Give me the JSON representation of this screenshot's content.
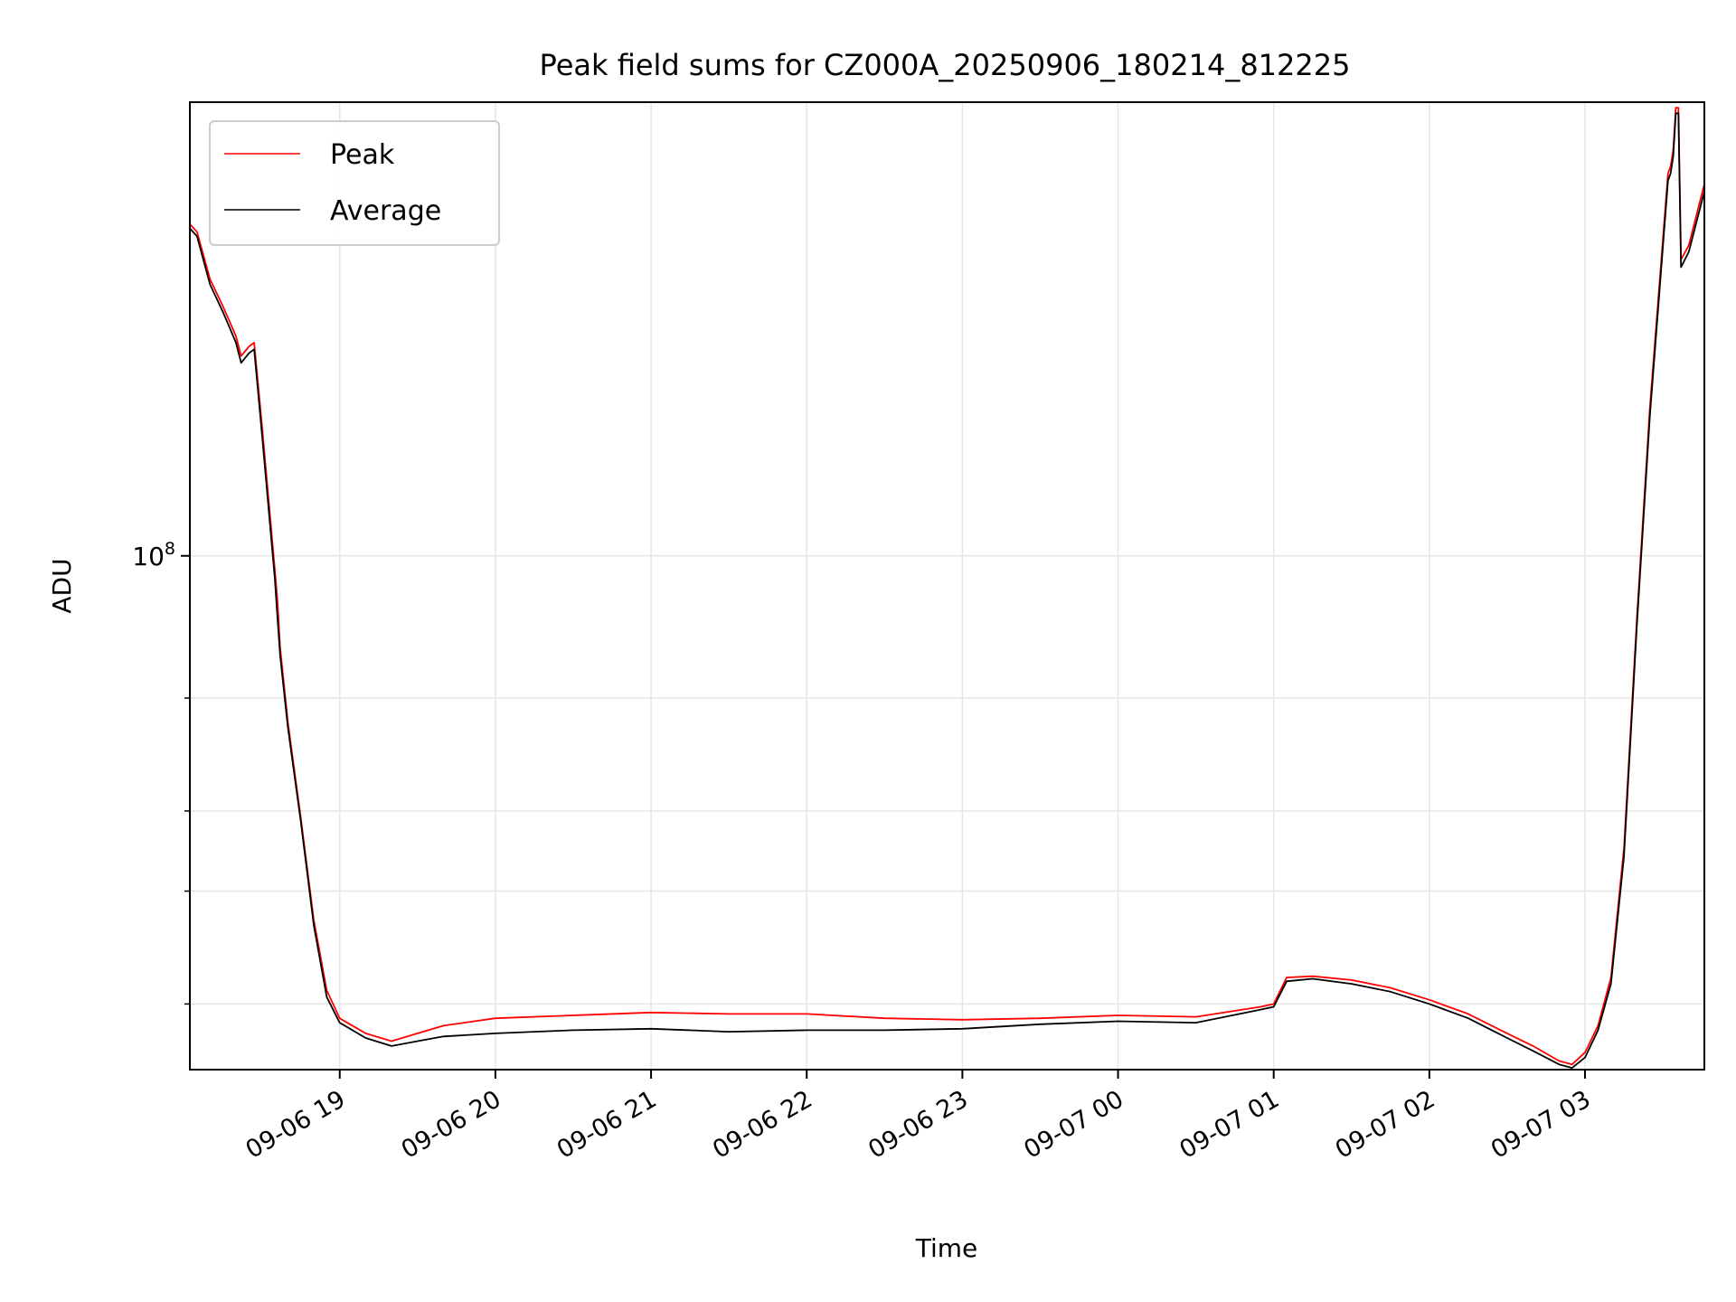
{
  "chart_data": {
    "type": "line",
    "title": "Peak field sums for CZ000A_20250906_180214_812225",
    "xlabel": "Time",
    "ylabel": "ADU",
    "y_scale": "log",
    "ylim": [
      15800000,
      510000000
    ],
    "xlim": [
      "2025-09-06 18:02:14",
      "2025-09-07 03:46:00"
    ],
    "x_ticks": [
      {
        "t": "2025-09-06 19:00",
        "label": "09-06 19"
      },
      {
        "t": "2025-09-06 20:00",
        "label": "09-06 20"
      },
      {
        "t": "2025-09-06 21:00",
        "label": "09-06 21"
      },
      {
        "t": "2025-09-06 22:00",
        "label": "09-06 22"
      },
      {
        "t": "2025-09-06 23:00",
        "label": "09-06 23"
      },
      {
        "t": "2025-09-07 00:00",
        "label": "09-07 00"
      },
      {
        "t": "2025-09-07 01:00",
        "label": "09-07 01"
      },
      {
        "t": "2025-09-07 02:00",
        "label": "09-07 02"
      },
      {
        "t": "2025-09-07 03:00",
        "label": "09-07 03"
      }
    ],
    "y_major_ticks": [
      {
        "value": 100000000,
        "base": "10",
        "exp": "8"
      }
    ],
    "y_minor_ticks": [
      20000000,
      30000000,
      40000000,
      60000000
    ],
    "grid": true,
    "legend": "top-left",
    "series": [
      {
        "name": "Peak",
        "color": "#ff0000",
        "x": [
          "2025-09-06 18:02",
          "2025-09-06 18:05",
          "2025-09-06 18:10",
          "2025-09-06 18:15",
          "2025-09-06 18:20",
          "2025-09-06 18:22",
          "2025-09-06 18:25",
          "2025-09-06 18:27",
          "2025-09-06 18:30",
          "2025-09-06 18:35",
          "2025-09-06 18:36",
          "2025-09-06 18:37",
          "2025-09-06 18:40",
          "2025-09-06 18:45",
          "2025-09-06 18:50",
          "2025-09-06 18:55",
          "2025-09-06 19:00",
          "2025-09-06 19:10",
          "2025-09-06 19:20",
          "2025-09-06 19:30",
          "2025-09-06 19:40",
          "2025-09-06 20:00",
          "2025-09-06 20:30",
          "2025-09-06 21:00",
          "2025-09-06 21:30",
          "2025-09-06 22:00",
          "2025-09-06 22:30",
          "2025-09-06 23:00",
          "2025-09-06 23:30",
          "2025-09-07 00:00",
          "2025-09-07 00:30",
          "2025-09-07 00:55",
          "2025-09-07 01:00",
          "2025-09-07 01:05",
          "2025-09-07 01:15",
          "2025-09-07 01:30",
          "2025-09-07 01:45",
          "2025-09-07 02:00",
          "2025-09-07 02:15",
          "2025-09-07 02:30",
          "2025-09-07 02:40",
          "2025-09-07 02:50",
          "2025-09-07 02:55",
          "2025-09-07 03:00",
          "2025-09-07 03:05",
          "2025-09-07 03:10",
          "2025-09-07 03:15",
          "2025-09-07 03:20",
          "2025-09-07 03:25",
          "2025-09-07 03:32",
          "2025-09-07 03:33",
          "2025-09-07 03:34",
          "2025-09-07 03:35",
          "2025-09-07 03:36",
          "2025-09-07 03:37",
          "2025-09-07 03:40",
          "2025-09-07 03:46"
        ],
        "y": [
          330000000,
          320000000,
          270000000,
          245000000,
          220000000,
          205000000,
          212000000,
          215000000,
          160000000,
          95000000,
          85000000,
          72000000,
          55000000,
          39000000,
          27000000,
          21000000,
          19000000,
          18000000,
          17500000,
          18000000,
          18500000,
          19000000,
          19200000,
          19400000,
          19300000,
          19300000,
          19000000,
          18900000,
          19000000,
          19200000,
          19100000,
          19800000,
          20000000,
          22000000,
          22100000,
          21800000,
          21200000,
          20300000,
          19300000,
          18000000,
          17200000,
          16300000,
          16100000,
          16800000,
          18500000,
          22000000,
          35000000,
          80000000,
          170000000,
          395000000,
          405000000,
          430000000,
          500000000,
          500000000,
          290000000,
          305000000,
          380000000
        ]
      },
      {
        "name": "Average",
        "color": "#000000",
        "x": [
          "2025-09-06 18:02",
          "2025-09-06 18:05",
          "2025-09-06 18:10",
          "2025-09-06 18:15",
          "2025-09-06 18:20",
          "2025-09-06 18:22",
          "2025-09-06 18:25",
          "2025-09-06 18:27",
          "2025-09-06 18:30",
          "2025-09-06 18:35",
          "2025-09-06 18:36",
          "2025-09-06 18:37",
          "2025-09-06 18:40",
          "2025-09-06 18:45",
          "2025-09-06 18:50",
          "2025-09-06 18:55",
          "2025-09-06 19:00",
          "2025-09-06 19:10",
          "2025-09-06 19:20",
          "2025-09-06 19:30",
          "2025-09-06 19:40",
          "2025-09-06 20:00",
          "2025-09-06 20:30",
          "2025-09-06 21:00",
          "2025-09-06 21:30",
          "2025-09-06 22:00",
          "2025-09-06 22:30",
          "2025-09-06 23:00",
          "2025-09-06 23:30",
          "2025-09-07 00:00",
          "2025-09-07 00:30",
          "2025-09-07 00:55",
          "2025-09-07 01:00",
          "2025-09-07 01:05",
          "2025-09-07 01:15",
          "2025-09-07 01:30",
          "2025-09-07 01:45",
          "2025-09-07 02:00",
          "2025-09-07 02:15",
          "2025-09-07 02:30",
          "2025-09-07 02:40",
          "2025-09-07 02:50",
          "2025-09-07 02:55",
          "2025-09-07 03:00",
          "2025-09-07 03:05",
          "2025-09-07 03:10",
          "2025-09-07 03:15",
          "2025-09-07 03:20",
          "2025-09-07 03:25",
          "2025-09-07 03:32",
          "2025-09-07 03:33",
          "2025-09-07 03:34",
          "2025-09-07 03:35",
          "2025-09-07 03:36",
          "2025-09-07 03:37",
          "2025-09-07 03:40",
          "2025-09-07 03:46"
        ],
        "y": [
          325000000,
          315000000,
          265000000,
          240000000,
          215000000,
          200000000,
          207000000,
          210000000,
          155000000,
          92000000,
          80000000,
          70000000,
          54000000,
          38500000,
          26500000,
          20500000,
          18700000,
          17700000,
          17200000,
          17500000,
          17800000,
          18000000,
          18200000,
          18300000,
          18100000,
          18200000,
          18200000,
          18300000,
          18600000,
          18800000,
          18700000,
          19600000,
          19800000,
          21700000,
          21900000,
          21500000,
          20900000,
          20000000,
          19000000,
          17700000,
          16900000,
          16100000,
          15900000,
          16500000,
          18200000,
          21500000,
          34000000,
          78000000,
          165000000,
          385000000,
          395000000,
          420000000,
          490000000,
          490000000,
          282000000,
          298000000,
          370000000
        ]
      }
    ]
  }
}
